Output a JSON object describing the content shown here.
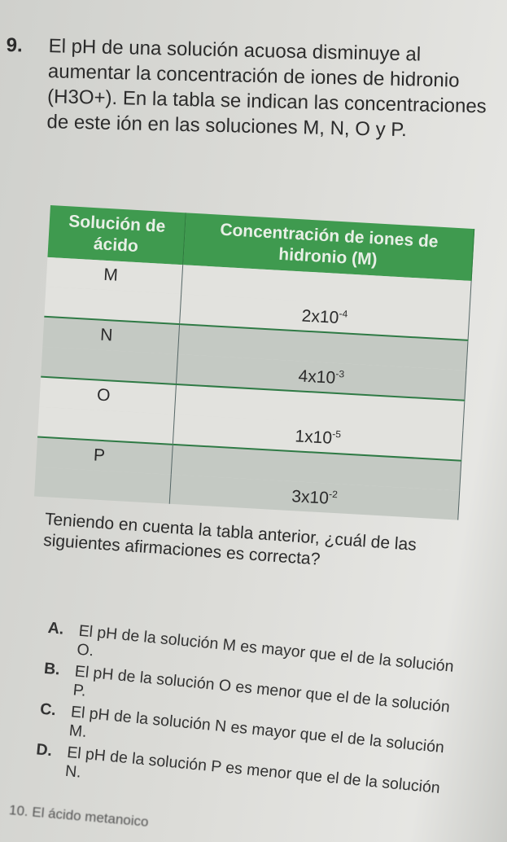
{
  "question": {
    "number": "9.",
    "text": "El pH de una solución acuosa disminuye al aumentar la concentración de iones de hidronio (H3O+). En la tabla se indican las concentraciones de este ión en las soluciones M, N, O y P."
  },
  "table": {
    "headers": [
      "Solución de ácido",
      "Concentración de iones de hidronio (M)"
    ],
    "rows": [
      {
        "solution": "M",
        "base": "2x10",
        "exp": "-4"
      },
      {
        "solution": "N",
        "base": "4x10",
        "exp": "-3"
      },
      {
        "solution": "O",
        "base": "1x10",
        "exp": "-5"
      },
      {
        "solution": "P",
        "base": "3x10",
        "exp": "-2"
      }
    ],
    "colors": {
      "header": "#3f9a4f",
      "row_light": "#e2e2de",
      "row_dark": "#c4c9c3"
    }
  },
  "prompt": "Teniendo en cuenta la tabla anterior, ¿cuál de las siguientes afirmaciones es correcta?",
  "options": [
    {
      "letter": "A.",
      "text": "El pH de la solución M es mayor que el de la solución O."
    },
    {
      "letter": "B.",
      "text": "El pH de la solución O es menor que el de la solución P."
    },
    {
      "letter": "C.",
      "text": "El pH de la solución N es mayor que el de la solución M."
    },
    {
      "letter": "D.",
      "text": "El pH de la solución P es menor que el de la solución N."
    }
  ],
  "next_question": "10. El ácido metanoico"
}
